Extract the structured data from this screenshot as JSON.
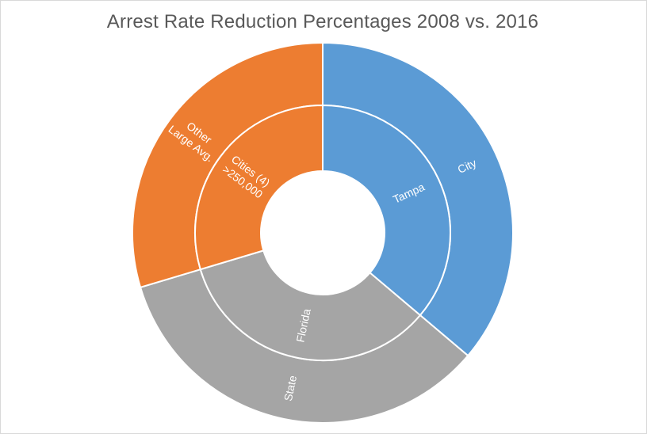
{
  "chart_data": {
    "type": "sunburst",
    "title": "Arrest Rate Reduction Percentages 2008 vs. 2016",
    "rings": [
      {
        "level": "outer",
        "segments": [
          {
            "label": "City",
            "share": 0.3618,
            "color": "#5B9BD5"
          },
          {
            "label": "State",
            "share": 0.3419,
            "color": "#A5A5A5"
          },
          {
            "label": "Other\nLarge Avg.",
            "share": 0.2963,
            "color": "#ED7D31"
          }
        ]
      },
      {
        "level": "inner",
        "segments": [
          {
            "label": "Tampa",
            "share": 0.3618,
            "color": "#5B9BD5"
          },
          {
            "label": "Florida",
            "share": 0.3419,
            "color": "#A5A5A5"
          },
          {
            "label": "Cities (4)\n>250,000",
            "share": 0.2963,
            "color": "#ED7D31"
          }
        ]
      }
    ],
    "separator_color": "#FFFFFF"
  }
}
